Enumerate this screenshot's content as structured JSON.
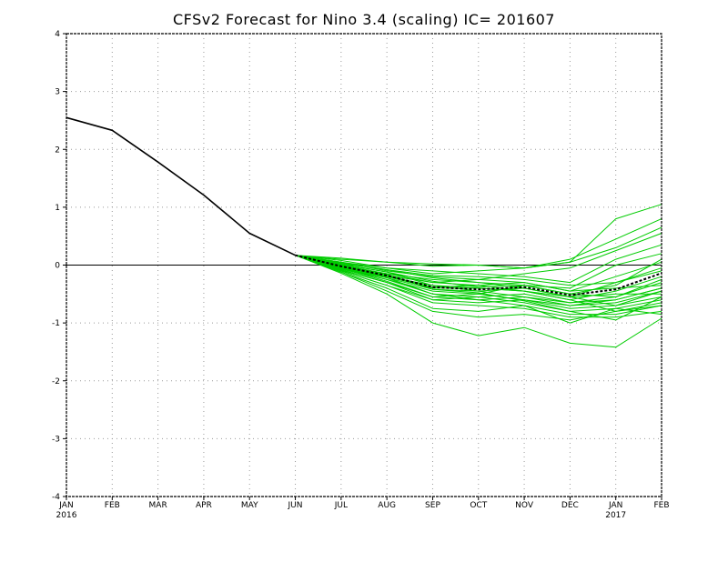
{
  "chart_data": {
    "type": "line",
    "title": "CFSv2 Forecast for Nino 3.4 (scaling)  IC= 201607",
    "x_ticks": [
      "JAN",
      "FEB",
      "MAR",
      "APR",
      "MAY",
      "JUN",
      "JUL",
      "AUG",
      "SEP",
      "OCT",
      "NOV",
      "DEC",
      "JAN",
      "FEB"
    ],
    "x_sub_ticks": [
      "2016",
      "",
      "",
      "",
      "",
      "",
      "",
      "",
      "",
      "",
      "",
      "",
      "2017",
      ""
    ],
    "y_ticks": [
      "-4",
      "-3",
      "-2",
      "-1",
      "0",
      "1",
      "2",
      "3",
      "4"
    ],
    "ylim": [
      -4,
      4
    ],
    "xlim": [
      0,
      13
    ],
    "grid": true,
    "colors": {
      "observed": "#000000",
      "members": "#00cc00",
      "mean": "#000000",
      "zero_line": "#000000"
    },
    "observed": {
      "x": [
        0,
        1,
        2,
        3,
        4,
        5
      ],
      "y": [
        2.55,
        2.33,
        1.78,
        1.21,
        0.55,
        0.17
      ]
    },
    "ensemble_mean": {
      "x": [
        5,
        6,
        7,
        8,
        9,
        10,
        11,
        12,
        13
      ],
      "y": [
        0.17,
        -0.02,
        -0.18,
        -0.38,
        -0.42,
        -0.38,
        -0.52,
        -0.42,
        -0.14
      ]
    },
    "members": [
      {
        "x": [
          5,
          6,
          7,
          8,
          9,
          10,
          11,
          12,
          13
        ],
        "y": [
          0.17,
          0.1,
          0.05,
          0.02,
          0.0,
          -0.05,
          0.1,
          0.45,
          0.8
        ]
      },
      {
        "x": [
          5,
          6,
          7,
          8,
          9,
          10,
          11,
          12,
          13
        ],
        "y": [
          0.17,
          0.12,
          0.05,
          -0.02,
          0.0,
          -0.05,
          0.05,
          0.8,
          1.05
        ]
      },
      {
        "x": [
          5,
          6,
          7,
          8,
          9,
          10,
          11,
          12,
          13
        ],
        "y": [
          0.17,
          0.08,
          -0.05,
          -0.15,
          -0.1,
          -0.05,
          0.05,
          0.3,
          0.65
        ]
      },
      {
        "x": [
          5,
          6,
          7,
          8,
          9,
          10,
          11,
          12,
          13
        ],
        "y": [
          0.17,
          0.05,
          -0.1,
          -0.2,
          -0.25,
          -0.15,
          -0.05,
          0.25,
          0.55
        ]
      },
      {
        "x": [
          5,
          6,
          7,
          8,
          9,
          10,
          11,
          12,
          13
        ],
        "y": [
          0.17,
          0.05,
          -0.05,
          -0.1,
          -0.15,
          -0.2,
          -0.3,
          0.1,
          0.35
        ]
      },
      {
        "x": [
          5,
          6,
          7,
          8,
          9,
          10,
          11,
          12,
          13
        ],
        "y": [
          0.17,
          0.03,
          -0.08,
          -0.22,
          -0.3,
          -0.35,
          -0.4,
          0.0,
          0.2
        ]
      },
      {
        "x": [
          5,
          6,
          7,
          8,
          9,
          10,
          11,
          12,
          13
        ],
        "y": [
          0.17,
          0.0,
          -0.15,
          -0.3,
          -0.35,
          -0.3,
          -0.45,
          -0.2,
          0.05
        ]
      },
      {
        "x": [
          5,
          6,
          7,
          8,
          9,
          10,
          11,
          12,
          13
        ],
        "y": [
          0.17,
          0.02,
          -0.12,
          -0.35,
          -0.45,
          -0.4,
          -0.55,
          -0.3,
          -0.05
        ]
      },
      {
        "x": [
          5,
          6,
          7,
          8,
          9,
          10,
          11,
          12,
          13
        ],
        "y": [
          0.17,
          -0.02,
          -0.2,
          -0.4,
          -0.4,
          -0.45,
          -0.6,
          -0.45,
          -0.2
        ]
      },
      {
        "x": [
          5,
          6,
          7,
          8,
          9,
          10,
          11,
          12,
          13
        ],
        "y": [
          0.17,
          -0.05,
          -0.25,
          -0.45,
          -0.5,
          -0.35,
          -0.5,
          -0.55,
          -0.3
        ]
      },
      {
        "x": [
          5,
          6,
          7,
          8,
          9,
          10,
          11,
          12,
          13
        ],
        "y": [
          0.17,
          -0.03,
          -0.18,
          -0.3,
          -0.25,
          -0.3,
          -0.45,
          -0.4,
          -0.35
        ]
      },
      {
        "x": [
          5,
          6,
          7,
          8,
          9,
          10,
          11,
          12,
          13
        ],
        "y": [
          0.17,
          -0.04,
          -0.22,
          -0.5,
          -0.55,
          -0.5,
          -0.65,
          -0.6,
          -0.4
        ]
      },
      {
        "x": [
          5,
          6,
          7,
          8,
          9,
          10,
          11,
          12,
          13
        ],
        "y": [
          0.17,
          -0.06,
          -0.28,
          -0.55,
          -0.6,
          -0.55,
          -0.7,
          -0.65,
          -0.45
        ]
      },
      {
        "x": [
          5,
          6,
          7,
          8,
          9,
          10,
          11,
          12,
          13
        ],
        "y": [
          0.17,
          -0.01,
          -0.15,
          -0.25,
          -0.3,
          -0.4,
          -0.55,
          -0.5,
          -0.5
        ]
      },
      {
        "x": [
          5,
          6,
          7,
          8,
          9,
          10,
          11,
          12,
          13
        ],
        "y": [
          0.17,
          -0.08,
          -0.3,
          -0.6,
          -0.65,
          -0.6,
          -0.75,
          -0.7,
          -0.55
        ]
      },
      {
        "x": [
          5,
          6,
          7,
          8,
          9,
          10,
          11,
          12,
          13
        ],
        "y": [
          0.17,
          -0.02,
          -0.16,
          -0.42,
          -0.48,
          -0.62,
          -0.8,
          -0.75,
          -0.6
        ]
      },
      {
        "x": [
          5,
          6,
          7,
          8,
          9,
          10,
          11,
          12,
          13
        ],
        "y": [
          0.17,
          -0.05,
          -0.2,
          -0.35,
          -0.4,
          -0.45,
          -0.6,
          -0.8,
          -0.65
        ]
      },
      {
        "x": [
          5,
          6,
          7,
          8,
          9,
          10,
          11,
          12,
          13
        ],
        "y": [
          0.17,
          -0.07,
          -0.25,
          -0.5,
          -0.6,
          -0.7,
          -0.85,
          -0.85,
          -0.7
        ]
      },
      {
        "x": [
          5,
          6,
          7,
          8,
          9,
          10,
          11,
          12,
          13
        ],
        "y": [
          0.17,
          -0.1,
          -0.35,
          -0.65,
          -0.7,
          -0.75,
          -0.9,
          -0.9,
          -0.8
        ]
      },
      {
        "x": [
          5,
          6,
          7,
          8,
          9,
          10,
          11,
          12,
          13
        ],
        "y": [
          0.17,
          -0.12,
          -0.4,
          -0.75,
          -0.8,
          -0.7,
          -1.0,
          -0.75,
          -0.85
        ]
      },
      {
        "x": [
          5,
          6,
          7,
          8,
          9,
          10,
          11,
          12,
          13
        ],
        "y": [
          0.17,
          -0.1,
          -0.35,
          -0.6,
          -0.55,
          -0.65,
          -0.8,
          -0.95,
          -0.55
        ]
      },
      {
        "x": [
          5,
          6,
          7,
          8,
          9,
          10,
          11,
          12,
          13
        ],
        "y": [
          0.17,
          -0.12,
          -0.45,
          -0.8,
          -0.9,
          -0.85,
          -0.95,
          -0.8,
          -0.7
        ]
      },
      {
        "x": [
          5,
          6,
          7,
          8,
          9,
          10,
          11,
          12,
          13
        ],
        "y": [
          0.17,
          -0.14,
          -0.5,
          -1.0,
          -1.22,
          -1.08,
          -1.35,
          -1.42,
          -0.92
        ]
      },
      {
        "x": [
          5,
          6,
          7,
          8,
          9,
          10,
          11,
          12,
          13
        ],
        "y": [
          0.17,
          -0.09,
          -0.3,
          -0.55,
          -0.5,
          -0.6,
          -0.7,
          -0.6,
          -0.4
        ]
      },
      {
        "x": [
          5,
          6,
          7,
          8,
          9,
          10,
          11,
          12,
          13
        ],
        "y": [
          0.17,
          -0.04,
          -0.18,
          -0.38,
          -0.35,
          -0.45,
          -0.55,
          -0.7,
          -0.45
        ]
      },
      {
        "x": [
          5,
          6,
          7,
          8,
          9,
          10,
          11,
          12,
          13
        ],
        "y": [
          0.17,
          -0.06,
          -0.22,
          -0.42,
          -0.45,
          -0.55,
          -0.65,
          -0.55,
          -0.25
        ]
      },
      {
        "x": [
          5,
          6,
          7,
          8,
          9,
          10,
          11,
          12,
          13
        ],
        "y": [
          0.17,
          0.04,
          -0.08,
          -0.18,
          -0.2,
          -0.25,
          -0.35,
          -0.3,
          -0.1
        ]
      },
      {
        "x": [
          5,
          6,
          7,
          8,
          9,
          10,
          11,
          12,
          13
        ],
        "y": [
          0.17,
          0.01,
          -0.12,
          -0.28,
          -0.38,
          -0.35,
          -0.5,
          -0.35,
          0.1
        ]
      }
    ]
  }
}
